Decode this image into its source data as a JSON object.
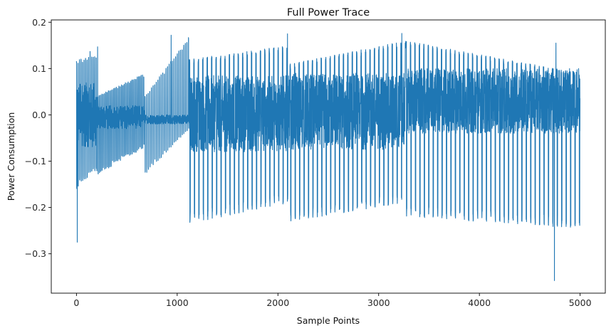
{
  "chart_data": {
    "type": "line",
    "title": "Full Power Trace",
    "xlabel": "Sample Points",
    "ylabel": "Power Consumption",
    "xlim": [
      -250,
      5250
    ],
    "ylim": [
      -0.385,
      0.205
    ],
    "grid": false,
    "xticks": [
      0,
      1000,
      2000,
      3000,
      4000,
      5000
    ],
    "xtick_labels": [
      "0",
      "1000",
      "2000",
      "3000",
      "4000",
      "5000"
    ],
    "yticks": [
      -0.3,
      -0.2,
      -0.1,
      0.0,
      0.1,
      0.2
    ],
    "ytick_labels": [
      "−0.3",
      "−0.2",
      "−0.1",
      "0.0",
      "0.1",
      "0.2"
    ],
    "series": [
      {
        "color": "#1f77b4",
        "n_points": 5000,
        "segments": [
          {
            "x_start": 0,
            "x_end": 200,
            "period": 15,
            "upper": [
              0.12,
              0.13
            ],
            "lower": [
              -0.16,
              -0.12
            ],
            "inner_upper": 0.07,
            "inner_lower": -0.07
          },
          {
            "x_start": 200,
            "x_end": 680,
            "period": 13,
            "upper": [
              0.04,
              0.09
            ],
            "lower": [
              -0.13,
              -0.07
            ],
            "inner_upper": 0.02,
            "inner_lower": -0.03
          },
          {
            "x_start": 680,
            "x_end": 1120,
            "period": 16,
            "upper": [
              0.04,
              0.17
            ],
            "lower": [
              -0.13,
              -0.03
            ],
            "inner_upper": 0.0,
            "inner_lower": -0.02
          },
          {
            "x_start": 1120,
            "x_end": 2120,
            "period": 44,
            "upper": [
              0.12,
              0.15
            ],
            "lower": [
              -0.235,
              -0.19
            ],
            "inner_upper": 0.085,
            "inner_lower": -0.08
          },
          {
            "x_start": 2120,
            "x_end": 3270,
            "period": 44,
            "upper": [
              0.11,
              0.16
            ],
            "lower": [
              -0.23,
              -0.19
            ],
            "inner_upper": 0.09,
            "inner_lower": -0.075
          },
          {
            "x_start": 3270,
            "x_end": 5000,
            "period": 44,
            "upper": [
              0.16,
              0.09
            ],
            "lower": [
              -0.22,
              -0.245
            ],
            "inner_upper": 0.1,
            "inner_lower": -0.04
          }
        ],
        "spikes": [
          {
            "x": 8,
            "y": -0.275
          },
          {
            "x": 135,
            "y": 0.137
          },
          {
            "x": 210,
            "y": 0.147
          },
          {
            "x": 940,
            "y": 0.172
          },
          {
            "x": 2095,
            "y": 0.175
          },
          {
            "x": 3230,
            "y": 0.176
          },
          {
            "x": 4745,
            "y": -0.358
          },
          {
            "x": 4760,
            "y": 0.155
          }
        ]
      }
    ]
  }
}
